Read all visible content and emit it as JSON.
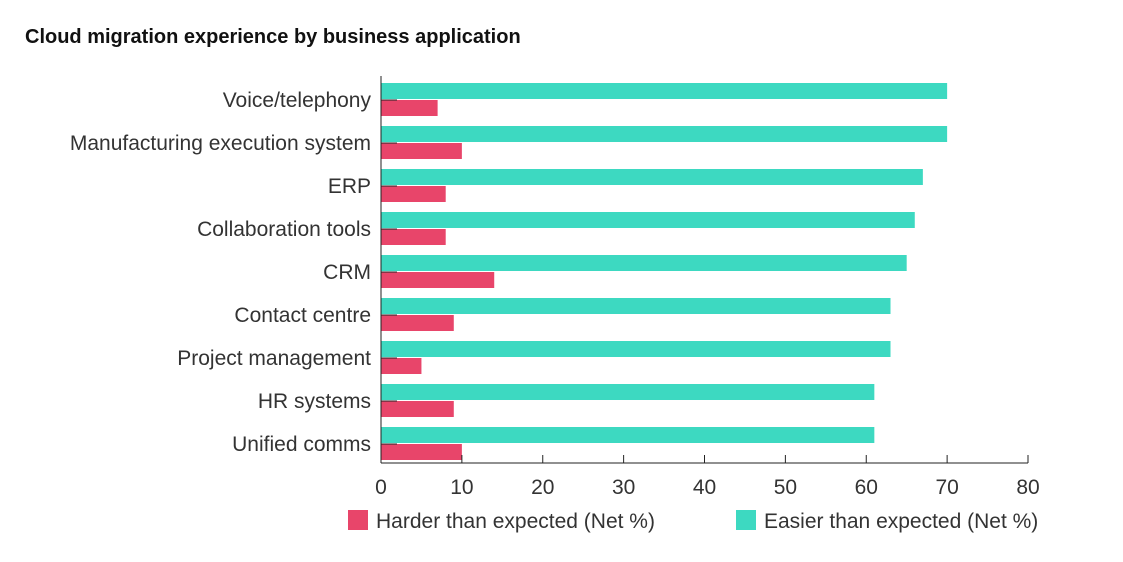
{
  "chart_data": {
    "type": "bar",
    "orientation": "horizontal",
    "title": "Cloud migration experience by business application",
    "categories": [
      "Voice/telephony",
      "Manufacturing execution system",
      "ERP",
      "Collaboration tools",
      "CRM",
      "Contact centre",
      "Project management",
      "HR systems",
      "Unified comms"
    ],
    "series": [
      {
        "name": "Easier than expected (Net %)",
        "color": "#3dd9c1",
        "values": [
          70,
          70,
          67,
          66,
          65,
          63,
          63,
          61,
          61
        ]
      },
      {
        "name": "Harder than expected (Net %)",
        "color": "#e8456a",
        "values": [
          7,
          10,
          8,
          8,
          14,
          9,
          5,
          9,
          10
        ]
      }
    ],
    "xlim": [
      0,
      80
    ],
    "xticks": [
      0,
      10,
      20,
      30,
      40,
      50,
      60,
      70,
      80
    ],
    "legend": {
      "position": "bottom",
      "items": [
        {
          "label": "Harder than expected (Net %)",
          "color": "#e8456a"
        },
        {
          "label": "Easier than expected (Net %)",
          "color": "#3dd9c1"
        }
      ]
    },
    "grid": false
  }
}
